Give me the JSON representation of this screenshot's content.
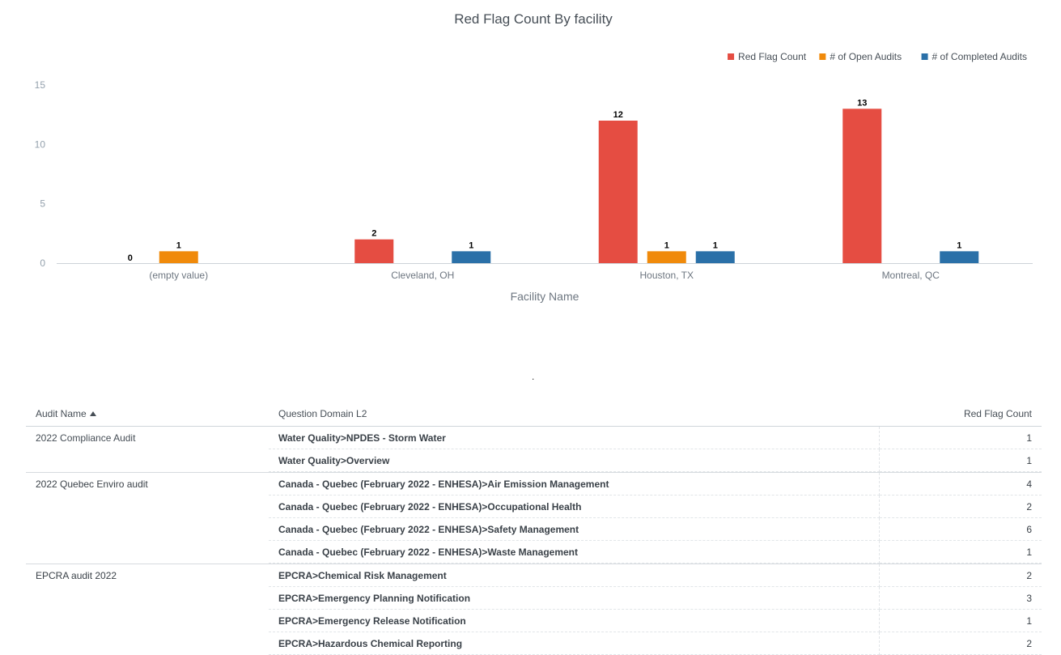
{
  "chart_data": {
    "type": "bar",
    "title": "Red Flag Count By facility",
    "xlabel": "Facility Name",
    "ylabel": "",
    "ylim": [
      0,
      15
    ],
    "yticks": [
      0,
      5,
      10,
      15
    ],
    "grid": false,
    "legend_position": "top-right",
    "categories": [
      "(empty value)",
      "Cleveland, OH",
      "Houston, TX",
      "Montreal, QC"
    ],
    "series": [
      {
        "name": "Red Flag Count",
        "color": "#e54d42",
        "values": [
          0,
          2,
          12,
          13
        ]
      },
      {
        "name": "# of Open Audits",
        "color": "#f08a0b",
        "values": [
          1,
          null,
          1,
          null
        ]
      },
      {
        "name": "# of Completed Audits",
        "color": "#2a70a8",
        "values": [
          null,
          1,
          1,
          1
        ]
      }
    ]
  },
  "separator": ".",
  "table": {
    "headers": {
      "audit": "Audit Name",
      "domain": "Question Domain L2",
      "count": "Red Flag Count"
    },
    "rows": [
      {
        "audit": "2022 Compliance Audit",
        "domain": "Water Quality>NPDES - Storm Water",
        "count": "1"
      },
      {
        "audit": "",
        "domain": "Water Quality>Overview",
        "count": "1"
      },
      {
        "audit": "2022 Quebec Enviro audit",
        "domain": "Canada - Quebec (February 2022 - ENHESA)>Air Emission Management",
        "count": "4"
      },
      {
        "audit": "",
        "domain": "Canada - Quebec (February 2022 - ENHESA)>Occupational Health",
        "count": "2"
      },
      {
        "audit": "",
        "domain": "Canada - Quebec (February 2022 - ENHESA)>Safety Management",
        "count": "6"
      },
      {
        "audit": "",
        "domain": "Canada - Quebec (February 2022 - ENHESA)>Waste Management",
        "count": "1"
      },
      {
        "audit": "EPCRA audit 2022",
        "domain": "EPCRA>Chemical Risk Management",
        "count": "2"
      },
      {
        "audit": "",
        "domain": "EPCRA>Emergency Planning Notification",
        "count": "3"
      },
      {
        "audit": "",
        "domain": "EPCRA>Emergency Release Notification",
        "count": "1"
      },
      {
        "audit": "",
        "domain": "EPCRA>Hazardous Chemical Reporting",
        "count": "2"
      }
    ]
  }
}
